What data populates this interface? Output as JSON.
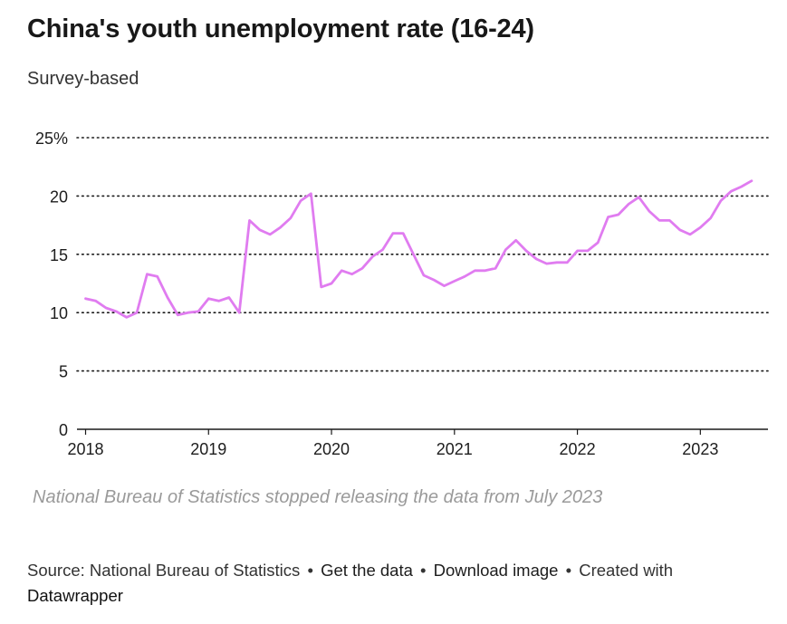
{
  "header": {
    "title": "China's youth unemployment rate (16-24)",
    "subtitle": "Survey-based"
  },
  "note": "National Bureau of Statistics stopped releasing the data from July 2023",
  "footer": {
    "source": "Source: National Bureau of Statistics",
    "separator": "•",
    "get_data": "Get the data",
    "download_image": "Download image",
    "created_with": "Created with",
    "datawrapper": "Datawrapper"
  },
  "chart_data": {
    "type": "line",
    "title": "China's youth unemployment rate (16-24)",
    "subtitle": "Survey-based",
    "xlabel": "",
    "ylabel": "",
    "ylim": [
      0,
      25
    ],
    "y_ticks": [
      0,
      5,
      10,
      15,
      20,
      25
    ],
    "y_tick_labels": [
      "0",
      "5",
      "10",
      "15",
      "20",
      "25%"
    ],
    "x_ticks": [
      2018,
      2019,
      2020,
      2021,
      2022,
      2023
    ],
    "x_tick_labels": [
      "2018",
      "2019",
      "2020",
      "2021",
      "2022",
      "2023"
    ],
    "line_color": "#e07cf0",
    "grid": "dotted horizontal",
    "series": [
      {
        "name": "Youth unemployment rate (16-24)",
        "start": "2018-01",
        "values": [
          11.2,
          11.0,
          10.4,
          10.1,
          9.6,
          10.0,
          13.3,
          13.1,
          11.3,
          9.8,
          10.0,
          10.1,
          11.2,
          11.0,
          11.3,
          10.0,
          17.9,
          17.1,
          16.7,
          17.3,
          18.1,
          19.6,
          20.2,
          12.2,
          12.5,
          13.6,
          13.3,
          13.8,
          14.8,
          15.4,
          16.8,
          16.8,
          15.0,
          13.2,
          12.8,
          12.3,
          12.7,
          13.1,
          13.6,
          13.6,
          13.8,
          15.4,
          16.2,
          15.3,
          14.6,
          14.2,
          14.3,
          14.3,
          15.3,
          15.3,
          16.0,
          18.2,
          18.4,
          19.3,
          19.9,
          18.7,
          17.9,
          17.9,
          17.1,
          16.7,
          17.3,
          18.1,
          19.6,
          20.4,
          20.8,
          21.3
        ]
      }
    ]
  }
}
